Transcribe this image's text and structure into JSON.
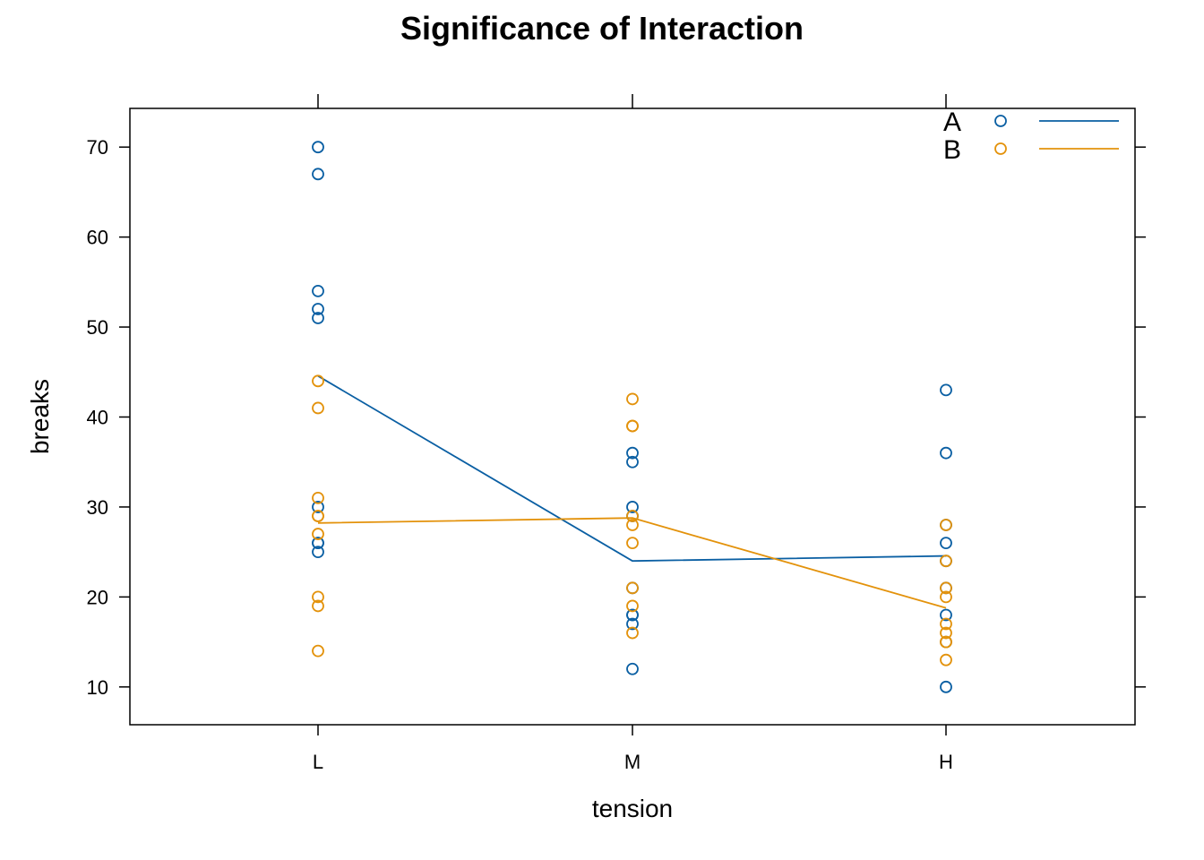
{
  "chart_data": {
    "type": "scatter",
    "title": "Significance of Interaction",
    "xlabel": "tension",
    "ylabel": "breaks",
    "categories": [
      "L",
      "M",
      "H"
    ],
    "y_ticks": [
      10,
      20,
      30,
      40,
      50,
      60,
      70
    ],
    "ylim": [
      5.8,
      74.3
    ],
    "grid": false,
    "legend_position": "top-right",
    "series": [
      {
        "name": "A",
        "color": "#0a5fa3",
        "points": {
          "L": [
            26,
            30,
            54,
            25,
            70,
            52,
            51,
            26,
            67
          ],
          "M": [
            18,
            21,
            29,
            17,
            12,
            18,
            35,
            30,
            36
          ],
          "H": [
            36,
            21,
            24,
            18,
            10,
            43,
            28,
            15,
            26
          ]
        },
        "means": [
          44.56,
          24.0,
          24.56
        ]
      },
      {
        "name": "B",
        "color": "#e3920b",
        "points": {
          "L": [
            27,
            14,
            29,
            19,
            29,
            31,
            41,
            20,
            44
          ],
          "M": [
            42,
            26,
            19,
            16,
            39,
            28,
            21,
            39,
            29
          ],
          "H": [
            20,
            21,
            24,
            17,
            13,
            15,
            15,
            16,
            28
          ]
        },
        "means": [
          28.22,
          28.78,
          18.78
        ]
      }
    ]
  }
}
